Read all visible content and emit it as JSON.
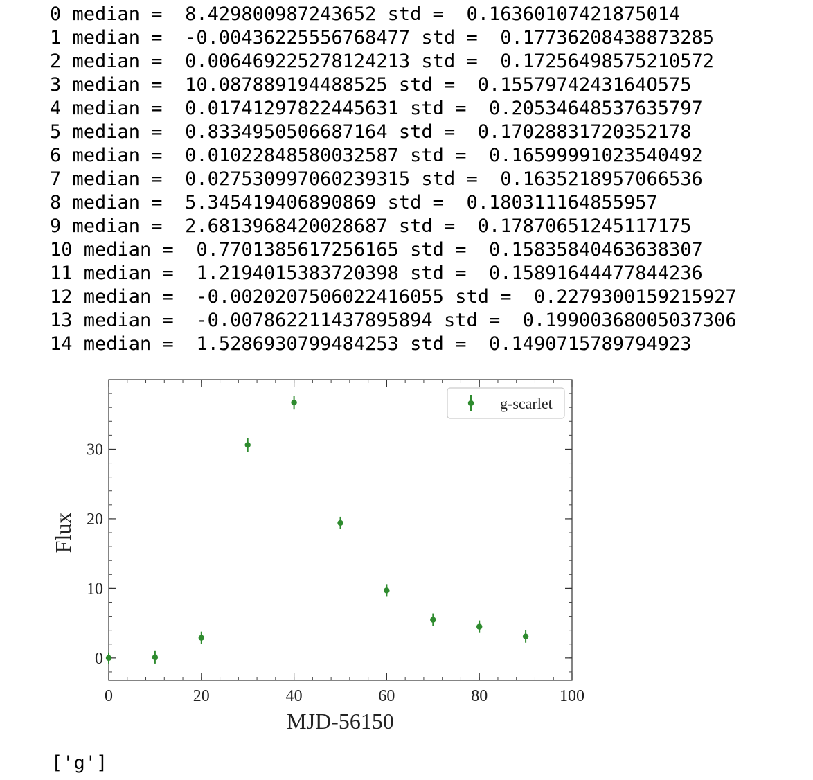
{
  "output": {
    "lines": [
      "0 median =  8.429800987243652 std =  0.16360107421875014",
      "1 median =  -0.0043622555676847​7 std =  0.17736208438873285",
      "2 median =  0.006469225278124213 std =  0.17256498575210572",
      "3 median =  10.087889194488525 std =  0.1557974243164O575",
      "4 median =  0.01741297822445631 std =  0.20534648537635797",
      "5 median =  0.8334950506687164 std =  0.17028831720352178",
      "6 median =  0.01022848580032587 std =  0.16599991023540492",
      "7 median =  0.027530997060239315 std =  0.1635218957066536",
      "8 median =  5.345419406890869 std =  0.180311164855957",
      "9 median =  2.6813968420028687 std =  0.17870651245117175",
      "10 median =  0.7701385617256165 std =  0.15835840463638307",
      "11 median =  1.2194015383720398 std =  0.15891644477844236",
      "12 median =  -0.0020207506022416055 std =  0.2279300159215927",
      "13 median =  -0.007862211437895894 std =  0.19900368005037306",
      "14 median =  1.5286930799484253 std =  0.1490715789794923"
    ],
    "list_output": "['g']"
  },
  "chart_data": {
    "type": "scatter",
    "title": "",
    "xlabel": "MJD-56150",
    "ylabel": "Flux",
    "xlim": [
      0,
      100
    ],
    "ylim": [
      -3.2,
      40
    ],
    "xticks": [
      0,
      20,
      40,
      60,
      80,
      100
    ],
    "yticks": [
      0,
      10,
      20,
      30
    ],
    "legend": {
      "entries": [
        "g-scarlet"
      ],
      "placement": "top-right"
    },
    "grid": false,
    "series": [
      {
        "name": "g-scarlet",
        "color": "#2e8b2e",
        "x": [
          0,
          10,
          20,
          30,
          40,
          50,
          60,
          70,
          80,
          90
        ],
        "y": [
          0.0,
          0.1,
          2.9,
          30.6,
          36.7,
          19.4,
          9.7,
          5.5,
          4.5,
          3.1
        ],
        "yerr": [
          0.8,
          0.9,
          0.9,
          1.0,
          1.0,
          0.9,
          0.9,
          0.9,
          0.9,
          0.9
        ]
      }
    ]
  }
}
